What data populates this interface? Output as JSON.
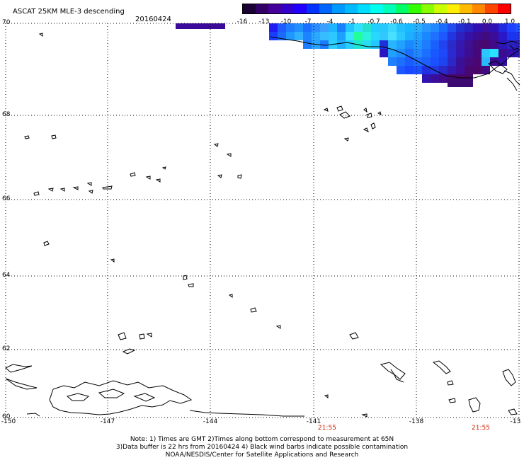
{
  "header": {
    "title": "ASCAT 25KM MLE-3 descending",
    "date": "20160424"
  },
  "legend": {
    "colors": [
      "#1a0033",
      "#330066",
      "#440099",
      "#3300cc",
      "#2200ff",
      "#0033ff",
      "#0066ff",
      "#0099ff",
      "#00bbff",
      "#00ddff",
      "#00ffee",
      "#00ffbb",
      "#00ff66",
      "#33ff00",
      "#88ff00",
      "#ccff00",
      "#ffee00",
      "#ffbb00",
      "#ff8800",
      "#ff4400",
      "#ff0000"
    ],
    "tick_labels": [
      "-16",
      "-13",
      "-10",
      "-7",
      "-4",
      "-1",
      "-0.7",
      "-0.6",
      "-0.5",
      "-0.4",
      "-0.1",
      "0.0",
      "1.0"
    ]
  },
  "axes": {
    "lat_labels": [
      "70",
      "68",
      "66",
      "64",
      "62",
      "60"
    ],
    "lon_labels": [
      "-150",
      "-147",
      "-144",
      "-141",
      "-138",
      "-13"
    ]
  },
  "pass_times": [
    "21:55",
    "21:55"
  ],
  "notes": {
    "line1": "Note: 1) Times are GMT 2)Times along bottom correspond to measurement at 65N",
    "line2": "3)Data buffer is 22 hrs from 20160424 4) Black wind barbs indicate possible contamination",
    "line3": "NOAA/NESDIS/Center for Satellite Applications and Research"
  }
}
